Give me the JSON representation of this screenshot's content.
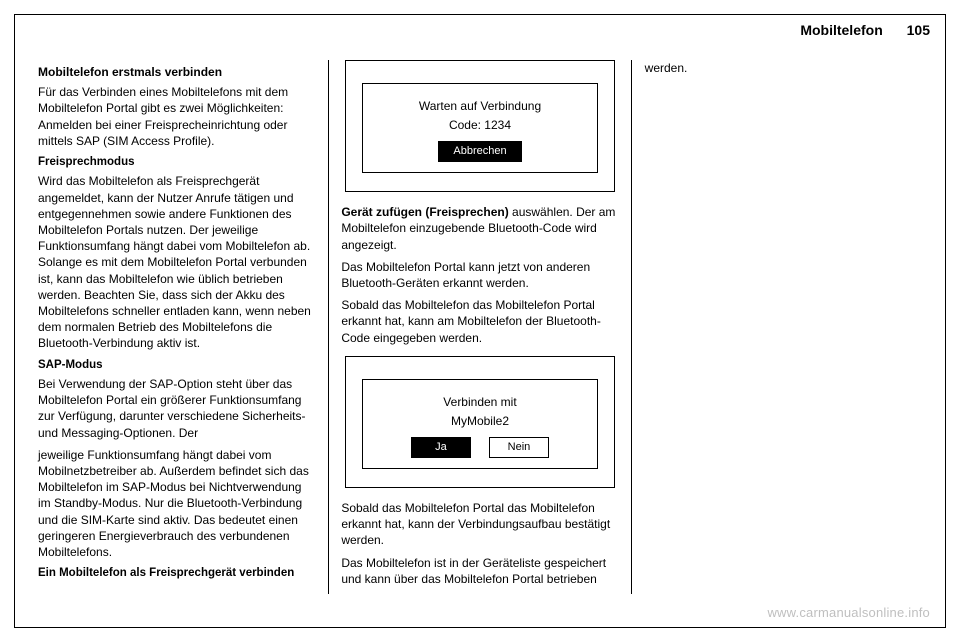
{
  "header": {
    "title": "Mobiltelefon",
    "page_number": "105"
  },
  "col1": {
    "h1": "Mobiltelefon erstmals verbinden",
    "p1": "Für das Verbinden eines Mobiltelefons mit dem Mobiltelefon Portal gibt es zwei Möglichkeiten: Anmelden bei einer Freisprecheinrichtung oder mittels SAP (SIM Access Profile).",
    "h2": "Freisprechmodus",
    "p2": "Wird das Mobiltelefon als Freisprechgerät angemeldet, kann der Nutzer Anrufe tätigen und entgegennehmen sowie andere Funktionen des Mobiltelefon Portals nutzen. Der jeweilige Funktionsumfang hängt dabei vom Mobiltelefon ab. Solange es mit dem Mobiltelefon Portal verbunden ist, kann das Mobiltelefon wie üblich betrieben werden. Beachten Sie, dass sich der Akku des Mobiltelefons schneller entladen kann, wenn neben dem normalen Betrieb des Mobiltelefons die Bluetooth-Verbindung aktiv ist.",
    "h3": "SAP-Modus",
    "p3": "Bei Verwendung der SAP-Option steht über das Mobiltelefon Portal ein größerer Funktionsumfang zur Verfügung, darunter verschiedene Sicherheits- und Messaging-Optionen. Der"
  },
  "col2": {
    "p1": "jeweilige Funktionsumfang hängt dabei vom Mobilnetzbetreiber ab. Außerdem befindet sich das Mobiltelefon im SAP-Modus bei Nichtverwendung im Standby-Modus. Nur die Bluetooth-Verbindung und die SIM-Karte sind aktiv. Das bedeutet einen geringeren Energieverbrauch des verbundenen Mobiltelefons.",
    "h1": "Ein Mobiltelefon als Freisprechgerät verbinden",
    "fig1": {
      "line1": "Warten auf Verbindung",
      "line2": "Code: 1234",
      "button_cancel": "Abbrechen"
    },
    "p2a": "Gerät zufügen (Freisprechen)",
    "p2b": " auswählen. Der am Mobiltelefon einzugebende Bluetooth-Code wird angezeigt."
  },
  "col3": {
    "p1": "Das Mobiltelefon Portal kann jetzt von anderen Bluetooth-Geräten erkannt werden.",
    "p2": "Sobald das Mobiltelefon das Mobiltelefon Portal erkannt hat, kann am Mobiltelefon der Bluetooth-Code eingegeben werden.",
    "fig2": {
      "line1": "Verbinden mit",
      "line2": "MyMobile2",
      "button_yes": "Ja",
      "button_no": "Nein"
    },
    "p3": "Sobald das Mobiltelefon Portal das Mobiltelefon erkannt hat, kann der Verbindungsaufbau bestätigt werden.",
    "p4": "Das Mobiltelefon ist in der Geräteliste gespeichert und kann über das Mobiltelefon Portal betrieben werden."
  },
  "watermark": "www.carmanualsonline.info",
  "style": {
    "page_bg": "#ffffff",
    "text_color": "#000000",
    "border_color": "#000000",
    "watermark_color": "#bfbfbf",
    "body_font_size_pt": 9,
    "header_font_size_pt": 11,
    "header_font_weight": "bold",
    "column_count": 3,
    "column_rule_color": "#000000",
    "dialog_selected_bg": "#000000",
    "dialog_selected_fg": "#ffffff",
    "dialog_unselected_bg": "#ffffff",
    "dialog_unselected_fg": "#000000"
  }
}
